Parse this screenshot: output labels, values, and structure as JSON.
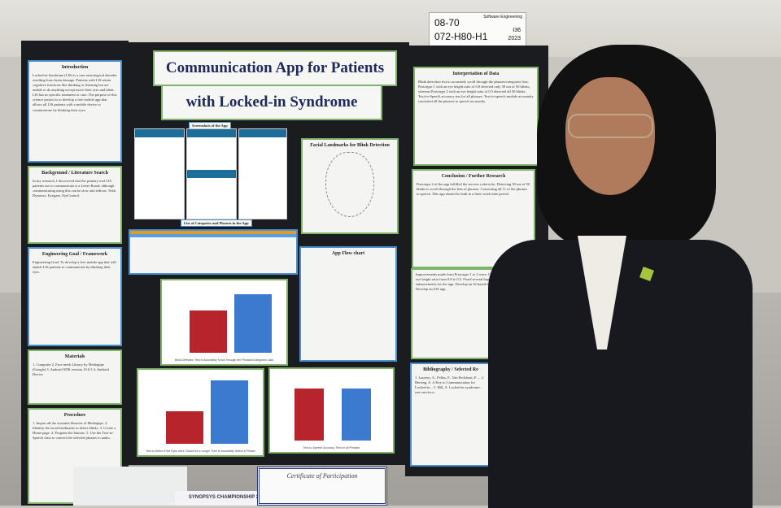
{
  "booth_card": {
    "category": "Software Engineering",
    "booth": "08-70",
    "id": "072-H80-H1",
    "code": "I36",
    "year": "2023"
  },
  "title": {
    "line1": "Communication App for Patients",
    "line2": "with Locked-in Syndrome"
  },
  "left_panel": [
    {
      "heading": "Introduction",
      "text": "Locked-in Syndrome (LIS) is a rare neurological disorder resulting from brain damage. Patients with LIS retain cognitive functions like thinking or listening but are unable to do anything except move their eyes and blink. LIS has no specific treatment or cure. The purpose of this science project is to develop a free mobile app that allows all LIS patients with a mobile device to communicate by blinking their eyes."
    },
    {
      "heading": "Background / Literature Search",
      "text": "In my research, I discovered that the primary tool LIS patients use to communicate is a Letter Board, although communicating using this can be slow and tedious. Tobii Dynavox, Eyegaze, EyeControl."
    },
    {
      "heading": "Engineering Goal / Framework",
      "text": "Engineering Goal: To develop a free mobile app that will enable LIS patients to communicate by blinking their eyes."
    },
    {
      "heading": "Materials",
      "text": "1. Computer  2. Face mesh Library by Mediapipe (Google)  3. Android SDK version 10.0.3  4. Android Device"
    },
    {
      "heading": "Procedure",
      "text": "1. Import all the essential libraries of Mediapipe. 2. Identify the facial landmarks to detect blinks. 3. Create a Home page. 4. Program the buttons. 5. Use the Text-to-Speech class to convert the selected phrases to audio."
    }
  ],
  "center": {
    "screenshots_label": "Screenshots of the App",
    "categories_label": "List of Categories and Phrases in the App",
    "landmarks_title": "Facial Landmarks for Blink Detection",
    "flowchart_title": "App Flow chart",
    "chart1_caption": "Blink Detection Test to Accurately Scroll Through the Phrases/Categories Lists",
    "chart2_caption": "Test to Detect if the Eyes were Closed for a Longer Time to Accurately Select a Phrase",
    "chart3_caption": "Text-to-Speech Accuracy Test for all Phrases"
  },
  "right_panel": [
    {
      "heading": "Interpretation of Data",
      "text": "Blink detection test to accurately scroll through the phrases/categories lists: Prototype 1 with an eye height ratio of 0.8 detected only 38 out of 50 blinks, whereas Prototype 2 with an eye height ratio of 0.5 detected all 50 blinks. Text-to-Speech accuracy test for all phrases: Text-to-speech module accurately converted all the phrases to speech accurately."
    },
    {
      "heading": "Conclusion / Further Research",
      "text": "Prototype 2 of the app fulfilled the success criteria by: Detecting 50 out of 50 blinks to scroll through the lists of phrases. Converting all 11 of the phrases to speech. This app should be built in a three week time period."
    },
    {
      "heading": "",
      "text": "Improvements made from Prototype 1 to 2 were: Changing the eye height ratio from 0.8 to 0.5. Fixed several bugs. Future enhancements for the app: Develop an AI based letter board. Develop an iOS app."
    },
    {
      "heading": "Bibliography / Selected Re",
      "text": "1. Laureys, S., Pellas, F., Van Eeckhout, P. ... 2. Herring, A. A Key to Communication for Locked-in... 3. Hill, A. Locked-in syndrome: rare survivor..."
    }
  ],
  "table": {
    "certificate": "Certificate of Participation",
    "banner": "SYNOPSYS CHAMPIONSHIP 2023"
  },
  "colors": {
    "board": "#1a1c20",
    "title_text": "#1f2a5c",
    "bar_red": "#b8242b",
    "bar_blue": "#3c7ad0",
    "frame_green": "#7fb36a"
  }
}
